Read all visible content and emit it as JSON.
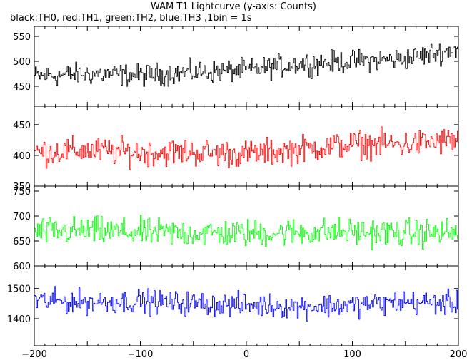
{
  "title": "WAM T1 Lightcurve (y-axis: Counts)",
  "subtitle": "black:TH0, red:TH1, green:TH2, blue:TH3 ,1bin = 1s",
  "chart_data": [
    {
      "type": "line",
      "name": "TH0",
      "color": "#000000",
      "x_range": [
        -200,
        200
      ],
      "x_ticks": [
        -200,
        -100,
        0,
        100,
        200
      ],
      "y_range": [
        410,
        570
      ],
      "y_ticks": [
        450,
        500,
        550
      ],
      "trend": {
        "x": [
          -200,
          -150,
          -100,
          -50,
          0,
          50,
          100,
          150,
          200
        ],
        "y": [
          470,
          475,
          472,
          478,
          482,
          495,
          500,
          505,
          525
        ]
      },
      "noise": 20
    },
    {
      "type": "line",
      "name": "TH1",
      "color": "#ff0000",
      "x_range": [
        -200,
        200
      ],
      "x_ticks": [
        -200,
        -100,
        0,
        100,
        200
      ],
      "y_range": [
        350,
        480
      ],
      "y_ticks": [
        350,
        400,
        450
      ],
      "trend": {
        "x": [
          -200,
          -150,
          -100,
          -50,
          0,
          50,
          100,
          150,
          200
        ],
        "y": [
          405,
          408,
          405,
          405,
          402,
          410,
          418,
          418,
          425
        ]
      },
      "noise": 20
    },
    {
      "type": "line",
      "name": "TH2",
      "color": "#00ff00",
      "x_range": [
        -200,
        200
      ],
      "x_ticks": [
        -200,
        -100,
        0,
        100,
        200
      ],
      "y_range": [
        600,
        760
      ],
      "y_ticks": [
        600,
        650,
        700,
        750
      ],
      "trend": {
        "x": [
          -200,
          -150,
          -100,
          -50,
          0,
          50,
          100,
          150,
          200
        ],
        "y": [
          668,
          670,
          667,
          666,
          665,
          668,
          668,
          666,
          667
        ]
      },
      "noise": 25
    },
    {
      "type": "line",
      "name": "TH3",
      "color": "#0000ff",
      "x_range": [
        -200,
        200
      ],
      "x_ticks": [
        -200,
        -100,
        0,
        100,
        200
      ],
      "y_range": [
        1310,
        1575
      ],
      "y_ticks": [
        1400,
        1500
      ],
      "trend": {
        "x": [
          -200,
          -150,
          -100,
          -50,
          0,
          50,
          100,
          150,
          200
        ],
        "y": [
          1460,
          1455,
          1458,
          1450,
          1445,
          1440,
          1445,
          1455,
          1450
        ]
      },
      "noise": 35
    }
  ]
}
